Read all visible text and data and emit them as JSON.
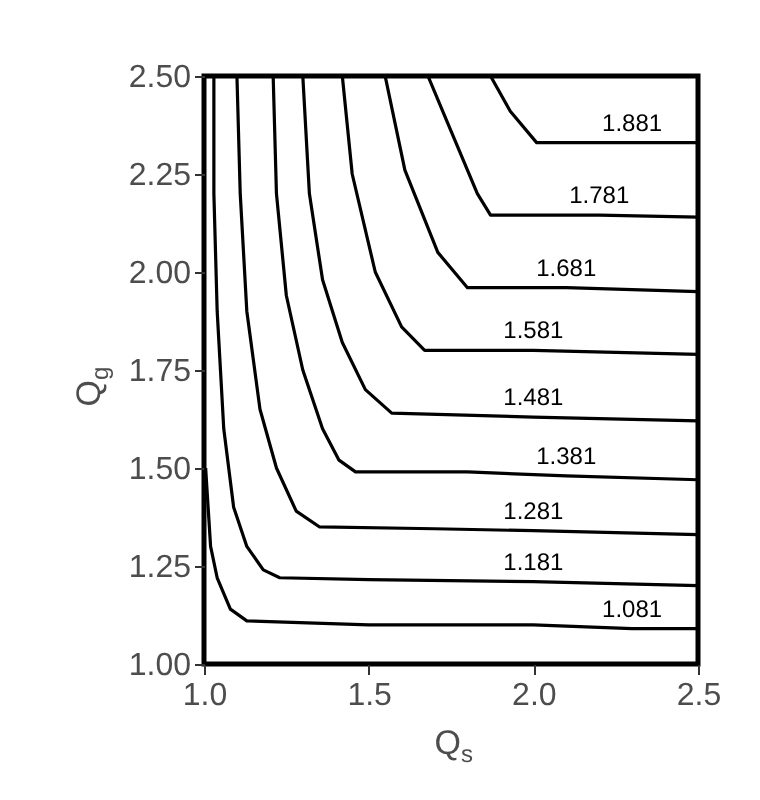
{
  "chart_data": {
    "type": "line",
    "xlabel": "Q$_{s}$",
    "ylabel": "Q$_{g}$",
    "xlim": [
      1,
      2.5
    ],
    "ylim": [
      1,
      2.5
    ],
    "xticks": [
      {
        "value": 1,
        "label": "1.0"
      },
      {
        "value": 1.5,
        "label": "1.5"
      },
      {
        "value": 2,
        "label": "2.0"
      },
      {
        "value": 2.5,
        "label": "2.5"
      }
    ],
    "yticks": [
      {
        "value": 1,
        "label": "1.00"
      },
      {
        "value": 1.25,
        "label": "1.25"
      },
      {
        "value": 1.5,
        "label": "1.50"
      },
      {
        "value": 1.75,
        "label": "1.75"
      },
      {
        "value": 2,
        "label": "2.00"
      },
      {
        "value": 2.25,
        "label": "2.25"
      },
      {
        "value": 2.5,
        "label": "2.50"
      }
    ],
    "grid": false,
    "legend": false,
    "line_style": "solid",
    "series": [
      {
        "name": "1.081",
        "color": "#000000",
        "x": [
          1.005,
          1.02,
          1.04,
          1.08,
          1.13,
          1.5,
          2.0,
          2.3,
          2.5
        ],
        "values": [
          1.5,
          1.3,
          1.22,
          1.14,
          1.11,
          1.1,
          1.1,
          1.09,
          1.09
        ]
      },
      {
        "name": "1.181",
        "color": "#000000",
        "x": [
          1.03,
          1.03,
          1.04,
          1.06,
          1.09,
          1.13,
          1.18,
          1.23,
          1.5,
          2.0,
          2.5
        ],
        "values": [
          2.5,
          2.2,
          1.9,
          1.6,
          1.4,
          1.3,
          1.24,
          1.22,
          1.215,
          1.21,
          1.2
        ]
      },
      {
        "name": "1.281",
        "color": "#000000",
        "x": [
          1.1,
          1.11,
          1.13,
          1.17,
          1.22,
          1.28,
          1.35,
          1.7,
          2.0,
          2.5
        ],
        "values": [
          2.5,
          2.2,
          1.9,
          1.65,
          1.5,
          1.39,
          1.35,
          1.345,
          1.34,
          1.33
        ]
      },
      {
        "name": "1.381",
        "color": "#000000",
        "x": [
          1.21,
          1.22,
          1.25,
          1.3,
          1.36,
          1.41,
          1.46,
          1.8,
          2.1,
          2.5
        ],
        "values": [
          2.5,
          2.2,
          1.94,
          1.75,
          1.6,
          1.52,
          1.49,
          1.49,
          1.48,
          1.47
        ]
      },
      {
        "name": "1.481",
        "color": "#000000",
        "x": [
          1.3,
          1.32,
          1.36,
          1.42,
          1.49,
          1.57,
          2.0,
          2.5
        ],
        "values": [
          2.5,
          2.2,
          1.98,
          1.82,
          1.7,
          1.64,
          1.63,
          1.62
        ]
      },
      {
        "name": "1.581",
        "color": "#000000",
        "x": [
          1.42,
          1.45,
          1.52,
          1.6,
          1.67,
          2.0,
          2.5
        ],
        "values": [
          2.5,
          2.25,
          2.0,
          1.86,
          1.8,
          1.8,
          1.79
        ]
      },
      {
        "name": "1.681",
        "color": "#000000",
        "x": [
          1.55,
          1.61,
          1.71,
          1.8,
          2.1,
          2.5
        ],
        "values": [
          2.5,
          2.26,
          2.05,
          1.96,
          1.96,
          1.95
        ]
      },
      {
        "name": "1.781",
        "color": "#000000",
        "x": [
          1.68,
          1.74,
          1.83,
          1.87,
          2.2,
          2.5
        ],
        "values": [
          2.5,
          2.38,
          2.2,
          2.145,
          2.145,
          2.14
        ]
      },
      {
        "name": "1.881",
        "color": "#000000",
        "x": [
          1.87,
          1.93,
          2.01,
          2.3,
          2.5
        ],
        "values": [
          2.5,
          2.41,
          2.33,
          2.33,
          2.33
        ]
      }
    ]
  }
}
